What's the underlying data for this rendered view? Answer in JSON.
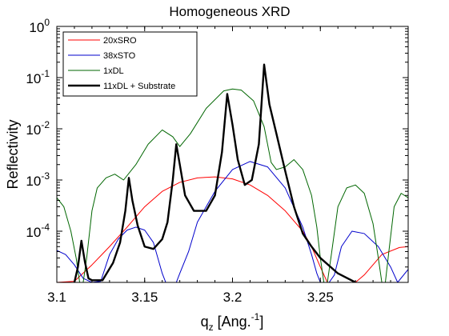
{
  "chart_data": {
    "type": "line",
    "title": "Homogeneous XRD",
    "xlabel": {
      "base": "q",
      "sub": "z",
      "rest": " [Ang.",
      "sup": "-1",
      "close": "]"
    },
    "ylabel": "Reflectivity",
    "xlim": [
      3.1,
      3.3
    ],
    "ylim": [
      1e-05,
      1
    ],
    "yscale": "log",
    "xticks": [
      3.1,
      3.15,
      3.2,
      3.25
    ],
    "xtick_labels": [
      "3.1",
      "3.15",
      "3.2",
      "3.25"
    ],
    "ytick_labels": [
      {
        "base": "10",
        "exp": "0"
      },
      {
        "base": "10",
        "exp": "-1"
      },
      {
        "base": "10",
        "exp": "-2"
      },
      {
        "base": "10",
        "exp": "-3"
      },
      {
        "base": "10",
        "exp": "-4"
      }
    ],
    "legend_position": "top-left",
    "series": [
      {
        "name": "20xSRO",
        "color": "#ff0000",
        "points": [
          [
            3.1,
            1e-05
          ],
          [
            3.11,
            1.05e-05
          ],
          [
            3.12,
            2.2e-05
          ],
          [
            3.13,
            5e-05
          ],
          [
            3.14,
            0.00012
          ],
          [
            3.15,
            0.0003
          ],
          [
            3.16,
            0.0006
          ],
          [
            3.17,
            0.0009
          ],
          [
            3.18,
            0.0011
          ],
          [
            3.19,
            0.00115
          ],
          [
            3.2,
            0.00105
          ],
          [
            3.21,
            0.0008
          ],
          [
            3.22,
            0.0005
          ],
          [
            3.23,
            0.00025
          ],
          [
            3.24,
            0.0001
          ],
          [
            3.245,
            5e-05
          ],
          [
            3.25,
            2e-05
          ],
          [
            3.254,
            1e-05
          ],
          [
            3.27,
            1e-05
          ],
          [
            3.275,
            1.4e-05
          ],
          [
            3.285,
            3.5e-05
          ],
          [
            3.295,
            4.8e-05
          ],
          [
            3.3,
            5e-05
          ]
        ]
      },
      {
        "name": "38xSTO",
        "color": "#0000cc",
        "points": [
          [
            3.1,
            4.2e-05
          ],
          [
            3.105,
            3.5e-05
          ],
          [
            3.11,
            2.2e-05
          ],
          [
            3.115,
            1.2e-05
          ],
          [
            3.12,
            1e-05
          ],
          [
            3.125,
            1.05e-05
          ],
          [
            3.13,
            3.5e-05
          ],
          [
            3.135,
            7e-05
          ],
          [
            3.14,
            0.000105
          ],
          [
            3.145,
            0.00012
          ],
          [
            3.15,
            0.000105
          ],
          [
            3.155,
            6e-05
          ],
          [
            3.16,
            1.5e-05
          ],
          [
            3.162,
            1e-05
          ],
          [
            3.168,
            1e-05
          ],
          [
            3.17,
            1.5e-05
          ],
          [
            3.175,
            4e-05
          ],
          [
            3.18,
            0.00015
          ],
          [
            3.19,
            0.0006
          ],
          [
            3.2,
            0.0016
          ],
          [
            3.21,
            0.0023
          ],
          [
            3.22,
            0.0018
          ],
          [
            3.23,
            0.0007
          ],
          [
            3.24,
            0.00012
          ],
          [
            3.245,
            3.5e-05
          ],
          [
            3.248,
            1.5e-05
          ],
          [
            3.25,
            1e-05
          ],
          [
            3.255,
            1e-05
          ],
          [
            3.258,
            1.4e-05
          ],
          [
            3.262,
            5e-05
          ],
          [
            3.268,
            0.0001
          ],
          [
            3.275,
            9e-05
          ],
          [
            3.283,
            5e-05
          ],
          [
            3.29,
            2e-05
          ],
          [
            3.294,
            1e-05
          ],
          [
            3.3,
            1.8e-05
          ]
        ]
      },
      {
        "name": "1xDL",
        "color": "#006600",
        "points": [
          [
            3.1,
            0.00045
          ],
          [
            3.104,
            0.0003
          ],
          [
            3.108,
            0.0001
          ],
          [
            3.111,
            3e-05
          ],
          [
            3.113,
            1e-05
          ],
          [
            3.115,
            1e-05
          ],
          [
            3.117,
            3e-05
          ],
          [
            3.12,
            0.00025
          ],
          [
            3.123,
            0.0007
          ],
          [
            3.128,
            0.0011
          ],
          [
            3.133,
            0.0013
          ],
          [
            3.138,
            0.001
          ],
          [
            3.145,
            0.002
          ],
          [
            3.152,
            0.005
          ],
          [
            3.16,
            0.0095
          ],
          [
            3.166,
            0.007
          ],
          [
            3.17,
            0.0045
          ],
          [
            3.176,
            0.008
          ],
          [
            3.185,
            0.025
          ],
          [
            3.195,
            0.055
          ],
          [
            3.2,
            0.06
          ],
          [
            3.205,
            0.057
          ],
          [
            3.212,
            0.035
          ],
          [
            3.218,
            0.011
          ],
          [
            3.222,
            0.0022
          ],
          [
            3.225,
            0.0016
          ],
          [
            3.23,
            0.0018
          ],
          [
            3.235,
            0.0025
          ],
          [
            3.24,
            0.0016
          ],
          [
            3.245,
            0.0005
          ],
          [
            3.248,
            0.00012
          ],
          [
            3.25,
            3e-05
          ],
          [
            3.252,
            1e-05
          ],
          [
            3.254,
            1e-05
          ],
          [
            3.256,
            3e-05
          ],
          [
            3.26,
            0.0003
          ],
          [
            3.265,
            0.0007
          ],
          [
            3.27,
            0.0008
          ],
          [
            3.275,
            0.00055
          ],
          [
            3.28,
            0.00014
          ],
          [
            3.283,
            3e-05
          ],
          [
            3.285,
            1e-05
          ],
          [
            3.287,
            1e-05
          ],
          [
            3.289,
            4e-05
          ],
          [
            3.292,
            0.0003
          ],
          [
            3.296,
            0.00055
          ],
          [
            3.3,
            0.00045
          ]
        ]
      },
      {
        "name": "11xDL + Substrate",
        "color": "#000000",
        "points": [
          [
            3.11,
            1e-05
          ],
          [
            3.112,
            2e-05
          ],
          [
            3.114,
            6.5e-05
          ],
          [
            3.116,
            2.5e-05
          ],
          [
            3.118,
            1.2e-05
          ],
          [
            3.12,
            1.1e-05
          ],
          [
            3.126,
            1.1e-05
          ],
          [
            3.132,
            2.4e-05
          ],
          [
            3.136,
            6e-05
          ],
          [
            3.139,
            0.00025
          ],
          [
            3.141,
            0.0011
          ],
          [
            3.143,
            0.0004
          ],
          [
            3.146,
            0.00013
          ],
          [
            3.15,
            5e-05
          ],
          [
            3.155,
            4.5e-05
          ],
          [
            3.16,
            7e-05
          ],
          [
            3.163,
            0.00015
          ],
          [
            3.166,
            0.001
          ],
          [
            3.168,
            0.005
          ],
          [
            3.17,
            0.002
          ],
          [
            3.173,
            0.0005
          ],
          [
            3.178,
            0.00025
          ],
          [
            3.185,
            0.00025
          ],
          [
            3.19,
            0.0005
          ],
          [
            3.194,
            0.0035
          ],
          [
            3.197,
            0.048
          ],
          [
            3.2,
            0.012
          ],
          [
            3.203,
            0.0025
          ],
          [
            3.207,
            0.0008
          ],
          [
            3.211,
            0.001
          ],
          [
            3.215,
            0.005
          ],
          [
            3.218,
            0.18
          ],
          [
            3.221,
            0.03
          ],
          [
            3.225,
            0.008
          ],
          [
            3.23,
            0.0015
          ],
          [
            3.235,
            0.0003
          ],
          [
            3.24,
            9e-05
          ],
          [
            3.245,
            5e-05
          ],
          [
            3.25,
            3e-05
          ],
          [
            3.26,
            1.5e-05
          ],
          [
            3.27,
            1e-05
          ]
        ]
      }
    ]
  }
}
